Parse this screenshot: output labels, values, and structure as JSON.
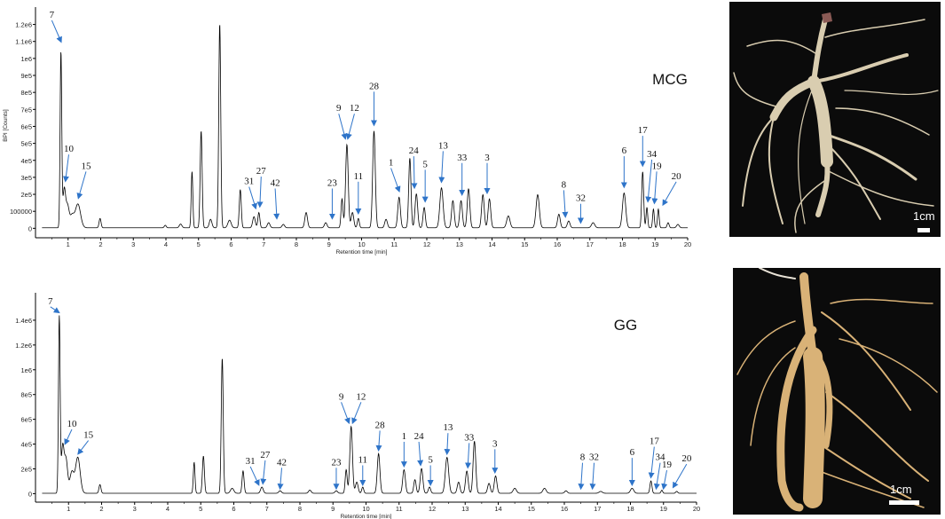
{
  "chart_data": [
    {
      "type": "line",
      "sample_label": "MCG",
      "ylabel": "BPI [Counts]",
      "xlabel": "Retention time [min]",
      "xlim": [
        0,
        20
      ],
      "ylim": [
        -40000,
        1250000
      ],
      "x_ticks": [
        "1",
        "2",
        "3",
        "4",
        "5",
        "6",
        "7",
        "8",
        "9",
        "10",
        "11",
        "12",
        "13",
        "14",
        "15",
        "16",
        "17",
        "18",
        "19",
        "20"
      ],
      "y_ticks": [
        {
          "v": 0,
          "label": "0"
        },
        {
          "v": 100000,
          "label": "100000"
        },
        {
          "v": 200000,
          "label": "2e5"
        },
        {
          "v": 300000,
          "label": "3e5"
        },
        {
          "v": 400000,
          "label": "4e5"
        },
        {
          "v": 500000,
          "label": "5e5"
        },
        {
          "v": 600000,
          "label": "6e5"
        },
        {
          "v": 700000,
          "label": "7e5"
        },
        {
          "v": 800000,
          "label": "8e5"
        },
        {
          "v": 900000,
          "label": "9e5"
        },
        {
          "v": 1000000,
          "label": "1e6"
        },
        {
          "v": 1100000,
          "label": "1.1e6"
        },
        {
          "v": 1200000,
          "label": "1.2e6"
        }
      ],
      "peaks": [
        [
          0.78,
          1030000,
          0.025
        ],
        [
          0.88,
          220000,
          0.04
        ],
        [
          0.98,
          130000,
          0.05
        ],
        [
          1.12,
          70000,
          0.06
        ],
        [
          1.3,
          140000,
          0.08
        ],
        [
          1.98,
          55000,
          0.03
        ],
        [
          3.98,
          15000,
          0.03
        ],
        [
          4.45,
          22000,
          0.04
        ],
        [
          4.8,
          330000,
          0.025
        ],
        [
          5.08,
          570000,
          0.03
        ],
        [
          5.37,
          50000,
          0.04
        ],
        [
          5.65,
          1200000,
          0.03
        ],
        [
          5.95,
          45000,
          0.05
        ],
        [
          6.28,
          225000,
          0.03
        ],
        [
          6.7,
          65000,
          0.04
        ],
        [
          6.85,
          90000,
          0.03
        ],
        [
          7.15,
          30000,
          0.04
        ],
        [
          7.6,
          20000,
          0.04
        ],
        [
          8.3,
          90000,
          0.04
        ],
        [
          8.9,
          30000,
          0.04
        ],
        [
          9.4,
          170000,
          0.03
        ],
        [
          9.55,
          490000,
          0.04
        ],
        [
          9.72,
          90000,
          0.04
        ],
        [
          9.9,
          55000,
          0.03
        ],
        [
          10.38,
          570000,
          0.04
        ],
        [
          10.75,
          50000,
          0.04
        ],
        [
          11.15,
          180000,
          0.04
        ],
        [
          11.48,
          410000,
          0.035
        ],
        [
          11.68,
          200000,
          0.04
        ],
        [
          11.92,
          120000,
          0.035
        ],
        [
          12.45,
          235000,
          0.05
        ],
        [
          12.8,
          160000,
          0.04
        ],
        [
          13.05,
          160000,
          0.04
        ],
        [
          13.28,
          230000,
          0.04
        ],
        [
          13.72,
          195000,
          0.04
        ],
        [
          13.92,
          170000,
          0.04
        ],
        [
          14.5,
          70000,
          0.05
        ],
        [
          15.4,
          195000,
          0.05
        ],
        [
          16.05,
          80000,
          0.04
        ],
        [
          16.35,
          40000,
          0.04
        ],
        [
          17.1,
          30000,
          0.05
        ],
        [
          18.05,
          205000,
          0.05
        ],
        [
          18.62,
          330000,
          0.03
        ],
        [
          18.75,
          120000,
          0.025
        ],
        [
          18.95,
          110000,
          0.025
        ],
        [
          19.1,
          110000,
          0.025
        ],
        [
          19.4,
          30000,
          0.03
        ],
        [
          19.7,
          20000,
          0.04
        ]
      ],
      "annotations": [
        {
          "label": "7",
          "lx": 0.5,
          "ly": 1240000,
          "tx": 0.78,
          "ty": 1090000
        },
        {
          "label": "10",
          "lx": 1.02,
          "ly": 450000,
          "tx": 0.92,
          "ty": 270000
        },
        {
          "label": "15",
          "lx": 1.55,
          "ly": 350000,
          "tx": 1.32,
          "ty": 170000
        },
        {
          "label": "31",
          "lx": 6.55,
          "ly": 260000,
          "tx": 6.75,
          "ty": 110000
        },
        {
          "label": "27",
          "lx": 6.92,
          "ly": 320000,
          "tx": 6.88,
          "ty": 120000
        },
        {
          "label": "42",
          "lx": 7.35,
          "ly": 250000,
          "tx": 7.4,
          "ty": 50000
        },
        {
          "label": "23",
          "lx": 9.1,
          "ly": 250000,
          "tx": 9.1,
          "ty": 50000
        },
        {
          "label": "11",
          "lx": 9.9,
          "ly": 290000,
          "tx": 9.9,
          "ty": 80000
        },
        {
          "label": "9",
          "lx": 9.3,
          "ly": 690000,
          "tx": 9.5,
          "ty": 520000
        },
        {
          "label": "12",
          "lx": 9.78,
          "ly": 690000,
          "tx": 9.58,
          "ty": 520000
        },
        {
          "label": "28",
          "lx": 10.38,
          "ly": 820000,
          "tx": 10.38,
          "ty": 600000
        },
        {
          "label": "1",
          "lx": 10.9,
          "ly": 370000,
          "tx": 11.15,
          "ty": 210000
        },
        {
          "label": "24",
          "lx": 11.6,
          "ly": 440000,
          "tx": 11.62,
          "ty": 230000
        },
        {
          "label": "5",
          "lx": 11.95,
          "ly": 360000,
          "tx": 11.95,
          "ty": 150000
        },
        {
          "label": "13",
          "lx": 12.5,
          "ly": 470000,
          "tx": 12.45,
          "ty": 265000
        },
        {
          "label": "33",
          "lx": 13.08,
          "ly": 400000,
          "tx": 13.08,
          "ty": 190000
        },
        {
          "label": "3",
          "lx": 13.85,
          "ly": 400000,
          "tx": 13.85,
          "ty": 200000
        },
        {
          "label": "8",
          "lx": 16.2,
          "ly": 240000,
          "tx": 16.25,
          "ty": 60000
        },
        {
          "label": "32",
          "lx": 16.72,
          "ly": 160000,
          "tx": 16.72,
          "ty": 25000
        },
        {
          "label": "6",
          "lx": 18.05,
          "ly": 440000,
          "tx": 18.05,
          "ty": 235000
        },
        {
          "label": "17",
          "lx": 18.62,
          "ly": 560000,
          "tx": 18.62,
          "ty": 360000
        },
        {
          "label": "34",
          "lx": 18.9,
          "ly": 420000,
          "tx": 18.78,
          "ty": 150000
        },
        {
          "label": "19",
          "lx": 19.05,
          "ly": 350000,
          "tx": 18.98,
          "ty": 140000
        },
        {
          "label": "20",
          "lx": 19.65,
          "ly": 290000,
          "tx": 19.25,
          "ty": 130000
        }
      ]
    },
    {
      "type": "line",
      "sample_label": "GG",
      "ylabel": "",
      "xlabel": "Retention time [min]",
      "xlim": [
        0,
        20
      ],
      "ylim": [
        -40000,
        1550000
      ],
      "x_ticks": [
        "1",
        "2",
        "3",
        "4",
        "5",
        "6",
        "7",
        "8",
        "9",
        "10",
        "11",
        "12",
        "13",
        "14",
        "15",
        "16",
        "17",
        "18",
        "19",
        "20"
      ],
      "y_ticks": [
        {
          "v": 0,
          "label": "0"
        },
        {
          "v": 200000,
          "label": "2e5"
        },
        {
          "v": 400000,
          "label": "4e5"
        },
        {
          "v": 600000,
          "label": "6e5"
        },
        {
          "v": 800000,
          "label": "8e5"
        },
        {
          "v": 1000000,
          "label": "1e6"
        },
        {
          "v": 1200000,
          "label": "1.2e6"
        },
        {
          "v": 1400000,
          "label": "1.4e6"
        }
      ],
      "peaks": [
        [
          0.72,
          1420000,
          0.025
        ],
        [
          0.82,
          360000,
          0.04
        ],
        [
          0.92,
          280000,
          0.05
        ],
        [
          1.1,
          170000,
          0.06
        ],
        [
          1.28,
          290000,
          0.07
        ],
        [
          1.95,
          70000,
          0.03
        ],
        [
          4.8,
          250000,
          0.025
        ],
        [
          5.08,
          300000,
          0.03
        ],
        [
          5.65,
          1090000,
          0.03
        ],
        [
          5.95,
          40000,
          0.05
        ],
        [
          6.28,
          180000,
          0.03
        ],
        [
          6.85,
          50000,
          0.04
        ],
        [
          7.4,
          20000,
          0.04
        ],
        [
          8.3,
          25000,
          0.04
        ],
        [
          9.1,
          20000,
          0.04
        ],
        [
          9.4,
          190000,
          0.03
        ],
        [
          9.55,
          540000,
          0.04
        ],
        [
          9.72,
          90000,
          0.04
        ],
        [
          9.9,
          50000,
          0.03
        ],
        [
          10.38,
          320000,
          0.04
        ],
        [
          11.15,
          190000,
          0.04
        ],
        [
          11.48,
          110000,
          0.035
        ],
        [
          11.68,
          200000,
          0.04
        ],
        [
          11.92,
          50000,
          0.035
        ],
        [
          12.45,
          290000,
          0.05
        ],
        [
          12.8,
          90000,
          0.04
        ],
        [
          13.05,
          180000,
          0.04
        ],
        [
          13.28,
          420000,
          0.04
        ],
        [
          13.72,
          80000,
          0.04
        ],
        [
          13.92,
          140000,
          0.04
        ],
        [
          14.5,
          40000,
          0.05
        ],
        [
          15.4,
          40000,
          0.05
        ],
        [
          16.05,
          20000,
          0.04
        ],
        [
          17.1,
          15000,
          0.05
        ],
        [
          18.05,
          40000,
          0.05
        ],
        [
          18.62,
          100000,
          0.03
        ],
        [
          18.95,
          25000,
          0.025
        ],
        [
          19.4,
          15000,
          0.03
        ]
      ],
      "annotations": [
        {
          "label": "7",
          "lx": 0.45,
          "ly": 1530000,
          "tx": 0.7,
          "ty": 1450000
        },
        {
          "label": "10",
          "lx": 1.1,
          "ly": 540000,
          "tx": 0.9,
          "ty": 390000
        },
        {
          "label": "15",
          "lx": 1.6,
          "ly": 450000,
          "tx": 1.3,
          "ty": 310000
        },
        {
          "label": "31",
          "lx": 6.5,
          "ly": 240000,
          "tx": 6.75,
          "ty": 60000
        },
        {
          "label": "27",
          "lx": 6.95,
          "ly": 290000,
          "tx": 6.88,
          "ty": 70000
        },
        {
          "label": "42",
          "lx": 7.45,
          "ly": 230000,
          "tx": 7.4,
          "ty": 30000
        },
        {
          "label": "23",
          "lx": 9.1,
          "ly": 230000,
          "tx": 9.1,
          "ty": 30000
        },
        {
          "label": "11",
          "lx": 9.9,
          "ly": 250000,
          "tx": 9.9,
          "ty": 60000
        },
        {
          "label": "9",
          "lx": 9.25,
          "ly": 760000,
          "tx": 9.48,
          "ty": 560000
        },
        {
          "label": "12",
          "lx": 9.85,
          "ly": 760000,
          "tx": 9.6,
          "ty": 560000
        },
        {
          "label": "28",
          "lx": 10.42,
          "ly": 530000,
          "tx": 10.38,
          "ty": 340000
        },
        {
          "label": "1",
          "lx": 11.15,
          "ly": 440000,
          "tx": 11.15,
          "ty": 210000
        },
        {
          "label": "24",
          "lx": 11.6,
          "ly": 440000,
          "tx": 11.65,
          "ty": 220000
        },
        {
          "label": "5",
          "lx": 11.95,
          "ly": 250000,
          "tx": 11.95,
          "ty": 60000
        },
        {
          "label": "13",
          "lx": 12.48,
          "ly": 510000,
          "tx": 12.45,
          "ty": 310000
        },
        {
          "label": "33",
          "lx": 13.12,
          "ly": 430000,
          "tx": 13.08,
          "ty": 200000
        },
        {
          "label": "3",
          "lx": 13.9,
          "ly": 380000,
          "tx": 13.9,
          "ty": 160000
        },
        {
          "label": "8",
          "lx": 16.55,
          "ly": 270000,
          "tx": 16.5,
          "ty": 30000
        },
        {
          "label": "32",
          "lx": 16.9,
          "ly": 270000,
          "tx": 16.85,
          "ty": 30000
        },
        {
          "label": "6",
          "lx": 18.05,
          "ly": 310000,
          "tx": 18.05,
          "ty": 60000
        },
        {
          "label": "17",
          "lx": 18.72,
          "ly": 400000,
          "tx": 18.62,
          "ty": 120000
        },
        {
          "label": "34",
          "lx": 18.9,
          "ly": 270000,
          "tx": 18.78,
          "ty": 30000
        },
        {
          "label": "19",
          "lx": 19.1,
          "ly": 210000,
          "tx": 19.0,
          "ty": 30000
        },
        {
          "label": "20",
          "lx": 19.7,
          "ly": 260000,
          "tx": 19.3,
          "ty": 40000
        }
      ]
    }
  ],
  "photos": [
    {
      "sample": "MCG",
      "scale_label": "1cm",
      "root_color": "#d9cdb0"
    },
    {
      "sample": "GG",
      "scale_label": "1cm",
      "root_color": "#d9b277"
    }
  ],
  "colors": {
    "trace": "#000000",
    "arrow": "#2e74c9",
    "axis": "#000000"
  }
}
